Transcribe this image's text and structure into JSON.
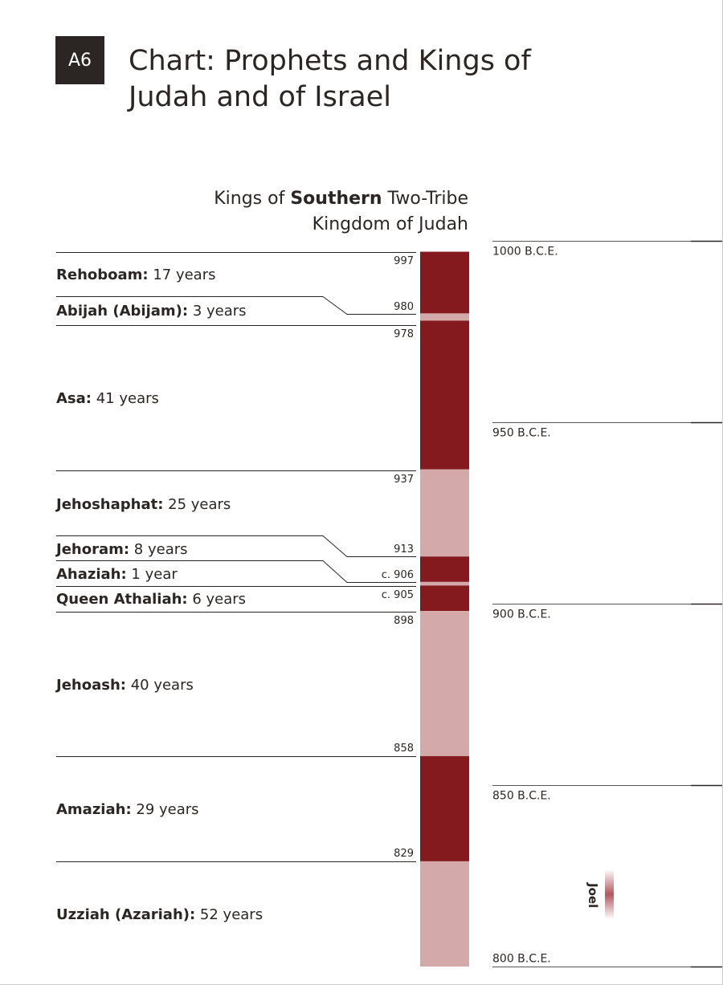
{
  "badge": "A6",
  "title_line1": "Chart: Prophets and Kings of",
  "title_line2": "Judah and of Israel",
  "heading": {
    "pre": "Kings of ",
    "bold": "Southern",
    "post": " Two-Tribe",
    "line2": "Kingdom of Judah"
  },
  "colors": {
    "dark": "#84191e",
    "light": "#d3aaa9",
    "text": "#2b2623"
  },
  "kings": [
    {
      "name": "Rehoboam:",
      "reign": " 17 years",
      "start_label": "997",
      "start": 997
    },
    {
      "name": "Abijah (Abijam):",
      "reign": " 3 years",
      "start_label": "980",
      "start": 980
    },
    {
      "name": "Asa:",
      "reign": " 41 years",
      "start_label": "978",
      "start": 978
    },
    {
      "name": "Jehoshaphat:",
      "reign": " 25 years",
      "start_label": "937",
      "start": 937
    },
    {
      "name": "Jehoram:",
      "reign": " 8 years",
      "start_label": "913",
      "start": 913
    },
    {
      "name": "Ahaziah:",
      "reign": " 1 year",
      "start_label": "c. 906",
      "start": 906
    },
    {
      "name": "Queen Athaliah:",
      "reign": " 6 years",
      "start_label": "c. 905",
      "start": 905
    },
    {
      "name": "Jehoash:",
      "reign": " 40 years",
      "start_label": "898",
      "start": 898
    },
    {
      "name": "Amaziah:",
      "reign": " 29 years",
      "start_label": "858",
      "start": 858
    },
    {
      "name": "Uzziah (Azariah):",
      "reign": " 52 years",
      "start_label": "829",
      "start": 829
    }
  ],
  "bar_end": 800,
  "axis": {
    "ticks": [
      {
        "year": 1000,
        "label": "1000 B.C.E."
      },
      {
        "year": 950,
        "label": "950 B.C.E."
      },
      {
        "year": 900,
        "label": "900 B.C.E."
      },
      {
        "year": 850,
        "label": "850 B.C.E."
      },
      {
        "year": 800,
        "label": "800 B.C.E."
      }
    ]
  },
  "prophets": [
    {
      "name": "Joel"
    }
  ]
}
